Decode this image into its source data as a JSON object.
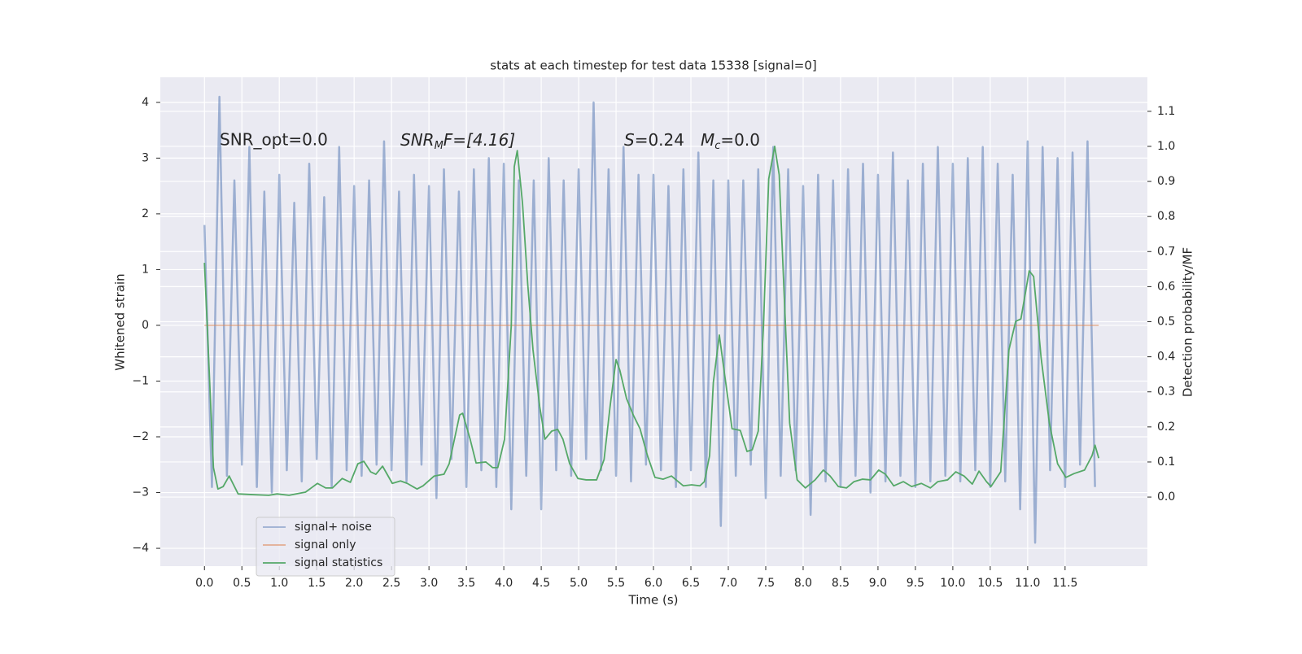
{
  "chart_data": {
    "type": "line",
    "title": "stats at each timestep for test data 15338 [signal=0]",
    "xlabel": "Time (s)",
    "ylabel": "Whitened strain",
    "y2label": "Detection probability/MF",
    "annotations": {
      "snr_opt": "SNR_opt=0.0",
      "snr_mf": [
        "SNR",
        "M",
        "F=[4.16]"
      ],
      "stats": [
        "S",
        "=0.24",
        "M",
        "c",
        "=0.0"
      ]
    },
    "xlim": [
      -0.59,
      12.6
    ],
    "ylim": [
      -4.32,
      4.45
    ],
    "y2lim": [
      -0.197,
      1.197
    ],
    "xticks": [
      {
        "value": 0,
        "label": "0.0"
      },
      0.5,
      {
        "value": 1,
        "label": "1.0"
      },
      1.5,
      {
        "value": 2,
        "label": "2.0"
      },
      2.5,
      {
        "value": 3,
        "label": "3.0"
      },
      3.5,
      {
        "value": 4,
        "label": "4.0"
      },
      4.5,
      {
        "value": 5,
        "label": "5.0"
      },
      5.5,
      {
        "value": 6,
        "label": "6.0"
      },
      6.5,
      {
        "value": 7,
        "label": "7.0"
      },
      7.5,
      {
        "value": 8,
        "label": "8.0"
      },
      8.5,
      {
        "value": 9,
        "label": "9.0"
      },
      9.5,
      {
        "value": 10,
        "label": "10.0"
      },
      10.5,
      {
        "value": 11,
        "label": "11.0"
      },
      11.5
    ],
    "yticks": [
      {
        "value": -4,
        "label": "−4"
      },
      {
        "value": -3,
        "label": "−3"
      },
      {
        "value": -2,
        "label": "−2"
      },
      {
        "value": -1,
        "label": "−1"
      },
      0,
      1,
      2,
      3,
      4
    ],
    "y2ticks": [
      {
        "value": 0,
        "label": "0.0"
      },
      0.1,
      0.2,
      0.3,
      0.4,
      0.5,
      0.6,
      0.7,
      0.8,
      0.9,
      {
        "value": 1,
        "label": "1.0"
      },
      1.1
    ],
    "grid": true,
    "legend": "lower left",
    "series": [
      {
        "name": "signal+ noise",
        "color": "#4c72b0",
        "axis": "y",
        "x": [
          0.0,
          0.1,
          0.2,
          0.3,
          0.4,
          0.5,
          0.6,
          0.7,
          0.8,
          0.9,
          1.0,
          1.1,
          1.2,
          1.3,
          1.4,
          1.5,
          1.6,
          1.7,
          1.8,
          1.9,
          2.0,
          2.1,
          2.2,
          2.3,
          2.4,
          2.5,
          2.6,
          2.7,
          2.8,
          2.9,
          3.0,
          3.1,
          3.2,
          3.3,
          3.4,
          3.5,
          3.6,
          3.7,
          3.8,
          3.9,
          4.0,
          4.1,
          4.2,
          4.3,
          4.4,
          4.5,
          4.6,
          4.7,
          4.8,
          4.9,
          5.0,
          5.1,
          5.2,
          5.3,
          5.4,
          5.5,
          5.6,
          5.7,
          5.8,
          5.9,
          6.0,
          6.1,
          6.2,
          6.3,
          6.4,
          6.5,
          6.6,
          6.7,
          6.8,
          6.9,
          7.0,
          7.1,
          7.2,
          7.3,
          7.4,
          7.5,
          7.6,
          7.7,
          7.8,
          7.9,
          8.0,
          8.1,
          8.2,
          8.3,
          8.4,
          8.5,
          8.6,
          8.7,
          8.8,
          8.9,
          9.0,
          9.1,
          9.2,
          9.3,
          9.4,
          9.5,
          9.6,
          9.7,
          9.8,
          9.9,
          10.0,
          10.1,
          10.2,
          10.3,
          10.4,
          10.5,
          10.6,
          10.7,
          10.8,
          10.9,
          11.0,
          11.1,
          11.2,
          11.3,
          11.4,
          11.5,
          11.6,
          11.7,
          11.8,
          11.9
        ],
        "values": [
          1.8,
          -2.9,
          4.1,
          -2.7,
          2.6,
          -2.5,
          3.2,
          -2.9,
          2.4,
          -3.0,
          2.7,
          -2.6,
          2.2,
          -2.8,
          2.9,
          -2.4,
          2.3,
          -2.9,
          3.2,
          -2.6,
          2.5,
          -2.7,
          2.6,
          -2.5,
          3.3,
          -2.6,
          2.4,
          -2.8,
          2.7,
          -2.5,
          2.5,
          -3.1,
          2.8,
          -2.4,
          2.4,
          -2.9,
          2.8,
          -2.6,
          3.0,
          -2.9,
          2.9,
          -3.3,
          2.6,
          -2.7,
          2.6,
          -3.3,
          3.0,
          -2.6,
          2.6,
          -2.7,
          2.8,
          -2.4,
          4.0,
          -2.6,
          2.8,
          -2.7,
          3.2,
          -2.8,
          2.7,
          -2.5,
          2.7,
          -2.6,
          2.5,
          -2.9,
          2.8,
          -2.6,
          3.1,
          -2.9,
          2.6,
          -3.6,
          2.6,
          -2.7,
          2.6,
          -2.5,
          2.8,
          -3.1,
          3.2,
          -2.7,
          2.8,
          -2.6,
          2.5,
          -3.4,
          2.7,
          -2.8,
          2.6,
          -2.9,
          2.8,
          -2.7,
          2.9,
          -3.0,
          2.7,
          -2.8,
          3.1,
          -2.7,
          2.6,
          -2.9,
          2.9,
          -2.8,
          3.2,
          -2.7,
          2.9,
          -2.8,
          3.0,
          -2.6,
          3.2,
          -2.9,
          2.9,
          -2.8,
          2.7,
          -3.3,
          3.3,
          -3.9,
          3.2,
          -2.6,
          3.0,
          -2.9,
          3.1,
          -2.5,
          3.3,
          -2.9
        ]
      },
      {
        "name": "signal only",
        "color": "#dd8452",
        "axis": "y",
        "x": [
          0.0,
          11.95
        ],
        "values": [
          0,
          0
        ]
      },
      {
        "name": "signal statistics",
        "color": "#55a868",
        "axis": "y2",
        "x": [
          0.0,
          0.12,
          0.18,
          0.25,
          0.33,
          0.45,
          0.64,
          0.86,
          0.97,
          1.13,
          1.35,
          1.51,
          1.62,
          1.71,
          1.84,
          1.95,
          2.05,
          2.13,
          2.22,
          2.29,
          2.38,
          2.51,
          2.62,
          2.71,
          2.84,
          2.92,
          3.07,
          3.2,
          3.27,
          3.41,
          3.45,
          3.55,
          3.63,
          3.76,
          3.85,
          3.92,
          4.01,
          4.1,
          4.14,
          4.18,
          4.25,
          4.32,
          4.39,
          4.48,
          4.55,
          4.64,
          4.72,
          4.79,
          4.88,
          4.99,
          5.1,
          5.24,
          5.34,
          5.42,
          5.5,
          5.55,
          5.64,
          5.73,
          5.82,
          5.92,
          6.02,
          6.13,
          6.24,
          6.33,
          6.4,
          6.51,
          6.62,
          6.68,
          6.75,
          6.8,
          6.88,
          6.95,
          7.05,
          7.16,
          7.25,
          7.32,
          7.4,
          7.47,
          7.54,
          7.62,
          7.68,
          7.75,
          7.82,
          7.92,
          8.03,
          8.16,
          8.27,
          8.36,
          8.47,
          8.58,
          8.68,
          8.79,
          8.9,
          9.01,
          9.1,
          9.21,
          9.34,
          9.45,
          9.58,
          9.7,
          9.8,
          9.93,
          10.04,
          10.15,
          10.26,
          10.35,
          10.45,
          10.51,
          10.64,
          10.75,
          10.84,
          10.91,
          10.97,
          11.02,
          11.08,
          11.18,
          11.29,
          11.4,
          11.51,
          11.62,
          11.76,
          11.86,
          11.9,
          11.95
        ],
        "values": [
          0.668,
          0.084,
          0.023,
          0.03,
          0.06,
          0.009,
          0.007,
          0.005,
          0.009,
          0.005,
          0.014,
          0.039,
          0.026,
          0.026,
          0.053,
          0.042,
          0.095,
          0.102,
          0.072,
          0.065,
          0.088,
          0.039,
          0.046,
          0.039,
          0.023,
          0.032,
          0.06,
          0.065,
          0.095,
          0.234,
          0.239,
          0.165,
          0.097,
          0.1,
          0.084,
          0.084,
          0.165,
          0.49,
          0.942,
          0.988,
          0.838,
          0.606,
          0.42,
          0.258,
          0.165,
          0.188,
          0.193,
          0.165,
          0.095,
          0.053,
          0.049,
          0.049,
          0.107,
          0.258,
          0.392,
          0.362,
          0.281,
          0.234,
          0.195,
          0.118,
          0.056,
          0.051,
          0.06,
          0.044,
          0.032,
          0.035,
          0.032,
          0.044,
          0.118,
          0.327,
          0.462,
          0.35,
          0.195,
          0.19,
          0.13,
          0.135,
          0.188,
          0.49,
          0.907,
          1.0,
          0.919,
          0.559,
          0.211,
          0.049,
          0.026,
          0.049,
          0.077,
          0.06,
          0.03,
          0.026,
          0.044,
          0.051,
          0.049,
          0.077,
          0.065,
          0.032,
          0.044,
          0.03,
          0.039,
          0.026,
          0.044,
          0.049,
          0.072,
          0.06,
          0.037,
          0.074,
          0.044,
          0.03,
          0.072,
          0.42,
          0.501,
          0.508,
          0.582,
          0.645,
          0.629,
          0.397,
          0.211,
          0.095,
          0.056,
          0.067,
          0.077,
          0.118,
          0.148,
          0.111
        ]
      }
    ]
  }
}
